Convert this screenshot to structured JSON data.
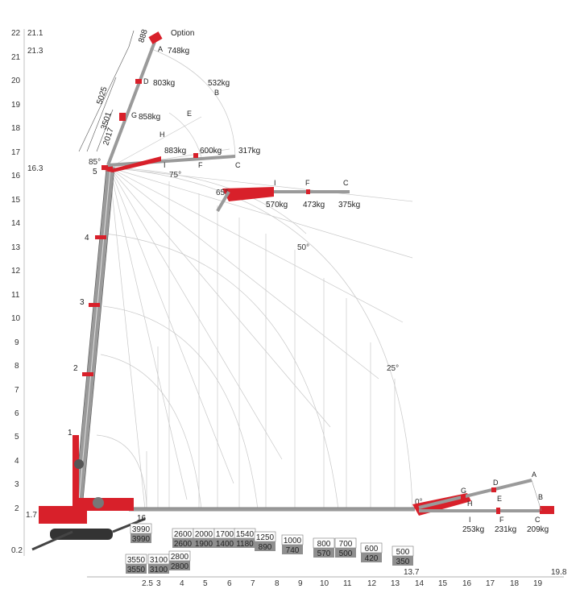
{
  "y_axis": {
    "ticks": [
      "0.2",
      "1.7",
      "2",
      "3",
      "4",
      "5",
      "6",
      "7",
      "8",
      "9",
      "10",
      "11",
      "12",
      "13",
      "14",
      "15",
      "16",
      "16.3",
      "17",
      "18",
      "19",
      "20",
      "21",
      "21.1",
      "21.3",
      "22"
    ]
  },
  "x_axis": {
    "ticks": [
      "2.5",
      "3",
      "4",
      "5",
      "6",
      "7",
      "8",
      "9",
      "10",
      "11",
      "12",
      "13",
      "14",
      "15",
      "16",
      "17",
      "18",
      "19"
    ],
    "extra": [
      "13.7",
      "19.8"
    ]
  },
  "boom": {
    "section_labels": [
      "1",
      "2",
      "3",
      "4",
      "5"
    ],
    "jib_angle": "85°"
  },
  "jib_top": {
    "option_label": "Option",
    "dimensions": [
      "888",
      "5025",
      "3501",
      "2017"
    ],
    "points": [
      "A",
      "D",
      "G",
      "H",
      "E",
      "B",
      "I",
      "F",
      "C"
    ],
    "loads": {
      "A": "748kg",
      "D": "803kg",
      "B": "532kg",
      "G": "858kg",
      "I": "883kg",
      "F": "600kg",
      "C": "317kg"
    }
  },
  "jib_mid": {
    "angle": "65°",
    "points": [
      "I",
      "F",
      "C"
    ],
    "loads": [
      "570kg",
      "473kg",
      "375kg"
    ]
  },
  "angles": [
    "75°",
    "50°",
    "25°",
    "0°"
  ],
  "jib_low": {
    "points": [
      "A",
      "D",
      "G",
      "B",
      "H",
      "E",
      "I",
      "F",
      "C"
    ],
    "loads": [
      "253kg",
      "231kg",
      "209kg"
    ]
  },
  "capacities": [
    {
      "top": "16",
      "w": "3990",
      "g": "3990"
    },
    {
      "w": "3550",
      "g": "3550"
    },
    {
      "w": "3100",
      "g": "3100"
    },
    {
      "w": "2800",
      "g": "2800"
    },
    {
      "w": "2600",
      "g": "2600"
    },
    {
      "w": "2000",
      "g": "1900"
    },
    {
      "w": "1700",
      "g": "1400"
    },
    {
      "w": "1540",
      "g": "1180"
    },
    {
      "w": "1250",
      "g": "890"
    },
    {
      "w": "1000",
      "g": "740"
    },
    {
      "w": "800",
      "g": "570"
    },
    {
      "w": "700",
      "g": "500"
    },
    {
      "w": "600",
      "g": "420"
    },
    {
      "w": "500",
      "g": "350"
    }
  ],
  "colors": {
    "crane_red": "#d8202a",
    "boom_grey": "#9a9a9a",
    "grid": "#c8c8c8",
    "cap_fill": "#8f8f8f"
  }
}
